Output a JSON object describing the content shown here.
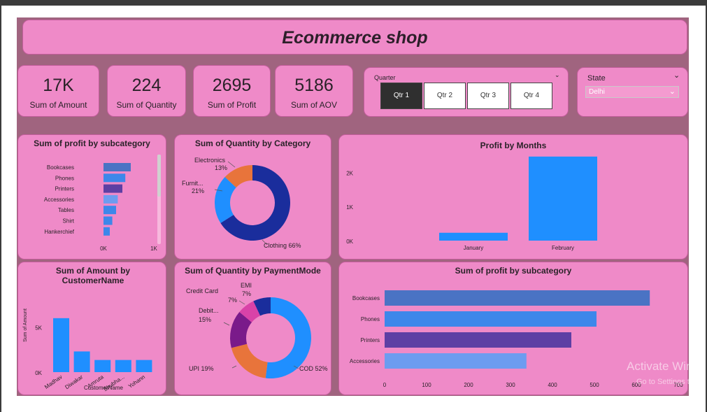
{
  "title": "Ecommerce shop",
  "kpis": [
    {
      "value": "17K",
      "label": "Sum of Amount"
    },
    {
      "value": "224",
      "label": "Sum of Quantity"
    },
    {
      "value": "2695",
      "label": "Sum of Profit"
    },
    {
      "value": "5186",
      "label": "Sum of AOV"
    }
  ],
  "quarter_slicer": {
    "title": "Quarter",
    "options": [
      "Qtr 1",
      "Qtr 2",
      "Qtr 3",
      "Qtr 4"
    ],
    "selected": "Qtr 1"
  },
  "state_slicer": {
    "title": "State",
    "selected": "Delhi"
  },
  "watermark": {
    "line1": "Activate Win",
    "line2": "Go to Settings to"
  },
  "chart_data": [
    {
      "id": "profit-subcat-small",
      "type": "bar",
      "orientation": "horizontal",
      "title": "Sum of profit by subcategory",
      "categories": [
        "Bookcases",
        "Phones",
        "Printers",
        "Accessories",
        "Tables",
        "Shirt",
        "Hankerchief"
      ],
      "values": [
        650,
        520,
        450,
        340,
        300,
        210,
        150
      ],
      "colors": [
        "#4a73c4",
        "#3d87ea",
        "#5d3fa4",
        "#6d9cf0",
        "#3d87ea",
        "#3d87ea",
        "#3d87ea"
      ],
      "xticks": [
        "0K",
        "1K"
      ],
      "xlim": [
        0,
        1000
      ]
    },
    {
      "id": "qty-category",
      "type": "pie",
      "donut": true,
      "title": "Sum of Quantity by Category",
      "slices": [
        {
          "label": "Clothing",
          "pct": "66%",
          "value": 66,
          "color": "#1a2d9c"
        },
        {
          "label": "Furnit...",
          "pct": "21%",
          "value": 21,
          "color": "#1f8fff"
        },
        {
          "label": "Electronics",
          "pct": "13%",
          "value": 13,
          "color": "#e8743b"
        }
      ]
    },
    {
      "id": "profit-months",
      "type": "bar",
      "title": "Profit by Months",
      "categories": [
        "January",
        "February"
      ],
      "values": [
        230,
        2460
      ],
      "color": "#1f8fff",
      "yticks": [
        {
          "v": 0,
          "t": "0K"
        },
        {
          "v": 1000,
          "t": "1K"
        },
        {
          "v": 2000,
          "t": "2K"
        }
      ],
      "ylim": [
        0,
        2600
      ]
    },
    {
      "id": "amount-customer",
      "type": "bar",
      "title": "Sum of Amount by CustomerName",
      "categories": [
        "Madhav",
        "Diwakar",
        "Amruta",
        "Shubha...",
        "Yohann"
      ],
      "values": [
        6000,
        2300,
        1350,
        1350,
        1350
      ],
      "color": "#1f8fff",
      "yticks": [
        {
          "v": 0,
          "t": "0K"
        },
        {
          "v": 5000,
          "t": "5K"
        }
      ],
      "ylim": [
        0,
        7000
      ],
      "xlabel": "CustomerName",
      "ylabel": "Sum of Amount"
    },
    {
      "id": "qty-payment",
      "type": "pie",
      "donut": true,
      "title": "Sum of Quantity by PaymentMode",
      "slices": [
        {
          "label": "COD",
          "pct": "52%",
          "value": 52,
          "color": "#1f8fff"
        },
        {
          "label": "UPI",
          "pct": "19%",
          "value": 19,
          "color": "#e8743b"
        },
        {
          "label": "Debit...",
          "pct": "15%",
          "value": 15,
          "color": "#7a1a8a"
        },
        {
          "label": "Credit Card",
          "pct": "7%",
          "value": 7,
          "color": "#d942a8"
        },
        {
          "label": "EMI",
          "pct": "7%",
          "value": 7,
          "color": "#1a2d9c"
        }
      ]
    },
    {
      "id": "profit-subcat-large",
      "type": "bar",
      "orientation": "horizontal",
      "title": "Sum of profit by subcategory",
      "categories": [
        "Bookcases",
        "Phones",
        "Printers",
        "Accessories"
      ],
      "values": [
        632,
        505,
        445,
        338
      ],
      "colors": [
        "#4a73c4",
        "#3d87ea",
        "#5d3fa4",
        "#6d9cf0"
      ],
      "xticks": [
        0,
        100,
        200,
        300,
        400,
        500,
        600,
        700
      ],
      "xlim": [
        0,
        700
      ]
    }
  ]
}
